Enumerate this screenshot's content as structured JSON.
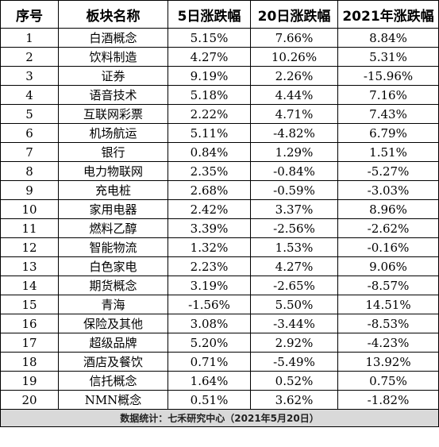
{
  "table": {
    "headers": [
      "序号",
      "板块名称",
      "5日涨跌幅",
      "20日涨跌幅",
      "2021年涨跌幅"
    ],
    "rows": [
      [
        "1",
        "白酒概念",
        "5.15%",
        "7.66%",
        "8.84%"
      ],
      [
        "2",
        "饮料制造",
        "4.27%",
        "10.26%",
        "5.31%"
      ],
      [
        "3",
        "证券",
        "9.19%",
        "2.26%",
        "-15.96%"
      ],
      [
        "4",
        "语音技术",
        "5.18%",
        "4.44%",
        "7.16%"
      ],
      [
        "5",
        "互联网彩票",
        "2.22%",
        "4.71%",
        "7.43%"
      ],
      [
        "6",
        "机场航运",
        "5.11%",
        "-4.82%",
        "6.79%"
      ],
      [
        "7",
        "银行",
        "0.84%",
        "1.29%",
        "1.51%"
      ],
      [
        "8",
        "电力物联网",
        "2.35%",
        "-0.84%",
        "-5.27%"
      ],
      [
        "9",
        "充电桩",
        "2.68%",
        "-0.59%",
        "-3.03%"
      ],
      [
        "10",
        "家用电器",
        "2.42%",
        "3.37%",
        "8.96%"
      ],
      [
        "11",
        "燃料乙醇",
        "3.39%",
        "-2.56%",
        "-2.62%"
      ],
      [
        "12",
        "智能物流",
        "1.32%",
        "1.53%",
        "-0.16%"
      ],
      [
        "13",
        "白色家电",
        "2.23%",
        "4.27%",
        "9.06%"
      ],
      [
        "14",
        "期货概念",
        "3.19%",
        "-2.65%",
        "-8.57%"
      ],
      [
        "15",
        "青海",
        "-1.56%",
        "5.50%",
        "14.51%"
      ],
      [
        "16",
        "保险及其他",
        "3.08%",
        "-3.44%",
        "-8.53%"
      ],
      [
        "17",
        "超级品牌",
        "5.20%",
        "2.92%",
        "-4.23%"
      ],
      [
        "18",
        "酒店及餐饮",
        "0.71%",
        "-5.49%",
        "13.92%"
      ],
      [
        "19",
        "信托概念",
        "1.64%",
        "0.52%",
        "0.75%"
      ],
      [
        "20",
        "NMN概念",
        "0.51%",
        "3.62%",
        "-1.82%"
      ]
    ],
    "footer": "数据统计：七禾研究中心（2021年5月20日）"
  }
}
